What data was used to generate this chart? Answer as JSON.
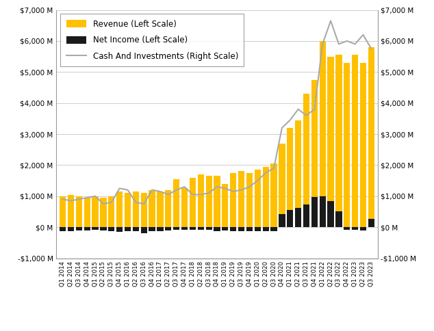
{
  "quarters": [
    "Q1 2014",
    "Q2 2014",
    "Q3 2014",
    "Q4 2014",
    "Q1 2015",
    "Q2 2015",
    "Q3 2015",
    "Q4 2015",
    "Q1 2016",
    "Q2 2016",
    "Q3 2016",
    "Q4 2016",
    "Q1 2017",
    "Q2 2017",
    "Q3 2017",
    "Q4 2017",
    "Q1 2018",
    "Q2 2018",
    "Q3 2018",
    "Q4 2018",
    "Q1 2019",
    "Q2 2019",
    "Q3 2019",
    "Q4 2019",
    "Q1 2020",
    "Q2 2020",
    "Q3 2020",
    "Q4 2020",
    "Q1 2021",
    "Q2 2021",
    "Q3 2021",
    "Q4 2021",
    "Q1 2022",
    "Q2 2022",
    "Q3 2022",
    "Q4 2022",
    "Q1 2023",
    "Q2 2023",
    "Q3 2023"
  ],
  "revenue": [
    1000,
    1050,
    1000,
    950,
    1000,
    950,
    1000,
    1150,
    1100,
    1150,
    1100,
    1200,
    1150,
    1200,
    1550,
    1250,
    1600,
    1700,
    1650,
    1650,
    1400,
    1750,
    1800,
    1750,
    1850,
    1950,
    2050,
    2700,
    3200,
    3450,
    4300,
    4750,
    6000,
    5500,
    5550,
    5300,
    5550,
    5300,
    5800
  ],
  "net_income": [
    -120,
    -130,
    -100,
    -100,
    -95,
    -100,
    -130,
    -160,
    -120,
    -125,
    -200,
    -130,
    -120,
    -100,
    -90,
    -90,
    -90,
    -90,
    -90,
    -120,
    -100,
    -130,
    -140,
    -130,
    -130,
    -130,
    -120,
    430,
    550,
    620,
    730,
    970,
    1000,
    830,
    500,
    -80,
    -80,
    -100,
    270
  ],
  "cash_investments": [
    900,
    850,
    900,
    950,
    1000,
    750,
    800,
    1250,
    1200,
    800,
    750,
    1200,
    1150,
    1050,
    1200,
    1300,
    1050,
    1050,
    1100,
    1300,
    1250,
    1150,
    1200,
    1300,
    1500,
    1750,
    1900,
    3200,
    3450,
    3800,
    3600,
    3800,
    5900,
    6650,
    5900,
    6000,
    5900,
    6200,
    5750
  ],
  "revenue_color": "#FFC000",
  "net_income_color": "#1a1a1a",
  "cash_color": "#aaaaaa",
  "ylim": [
    -1000,
    7000
  ],
  "yticks": [
    -1000,
    0,
    1000,
    2000,
    3000,
    4000,
    5000,
    6000,
    7000
  ],
  "background_color": "#ffffff",
  "grid_color": "#bbbbbb",
  "legend_labels": [
    "Revenue (Left Scale)",
    "Net Income (Left Scale)",
    "Cash And Investments (Right Scale)"
  ]
}
